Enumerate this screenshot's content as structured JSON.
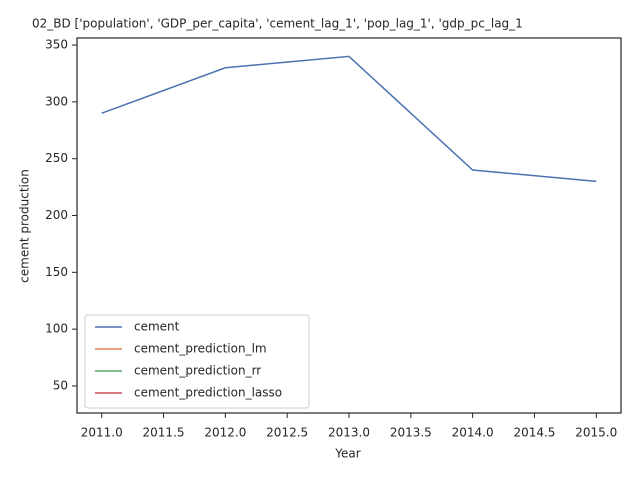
{
  "chart_data": {
    "type": "line",
    "title": "02_BD ['population', 'GDP_per_capita', 'cement_lag_1', 'pop_lag_1', 'gdp_pc_lag_1",
    "x_label": "Year",
    "y_label": "cement production",
    "x": [
      2011,
      2012,
      2013,
      2014,
      2015
    ],
    "series": [
      {
        "name": "cement",
        "color": "#4c72b0",
        "values": [
          290,
          330,
          340,
          240,
          230
        ]
      },
      {
        "name": "cement_prediction_lm",
        "color": "#dd8452",
        "values": [
          null,
          null,
          null,
          null,
          null
        ]
      },
      {
        "name": "cement_prediction_rr",
        "color": "#55a868",
        "values": [
          null,
          null,
          null,
          null,
          null
        ]
      },
      {
        "name": "cement_prediction_lasso",
        "color": "#c44e52",
        "values": [
          null,
          null,
          null,
          null,
          null
        ]
      }
    ],
    "xlim": [
      2010.8,
      2015.2
    ],
    "xticks": [
      {
        "value": 2011,
        "label": "2011.0"
      },
      {
        "value": 2011.5,
        "label": "2011.5"
      },
      {
        "value": 2012,
        "label": "2012.0"
      },
      {
        "value": 2012.5,
        "label": "2012.5"
      },
      {
        "value": 2013,
        "label": "2013.0"
      },
      {
        "value": 2013.5,
        "label": "2013.5"
      },
      {
        "value": 2014,
        "label": "2014.0"
      },
      {
        "value": 2014.5,
        "label": "2014.5"
      },
      {
        "value": 2015,
        "label": "2015.0"
      }
    ],
    "ylim": [
      26.2,
      356.2
    ],
    "yticks": [
      50,
      100,
      150,
      200,
      250,
      300,
      350
    ],
    "legend": "lower left",
    "grid": false
  }
}
